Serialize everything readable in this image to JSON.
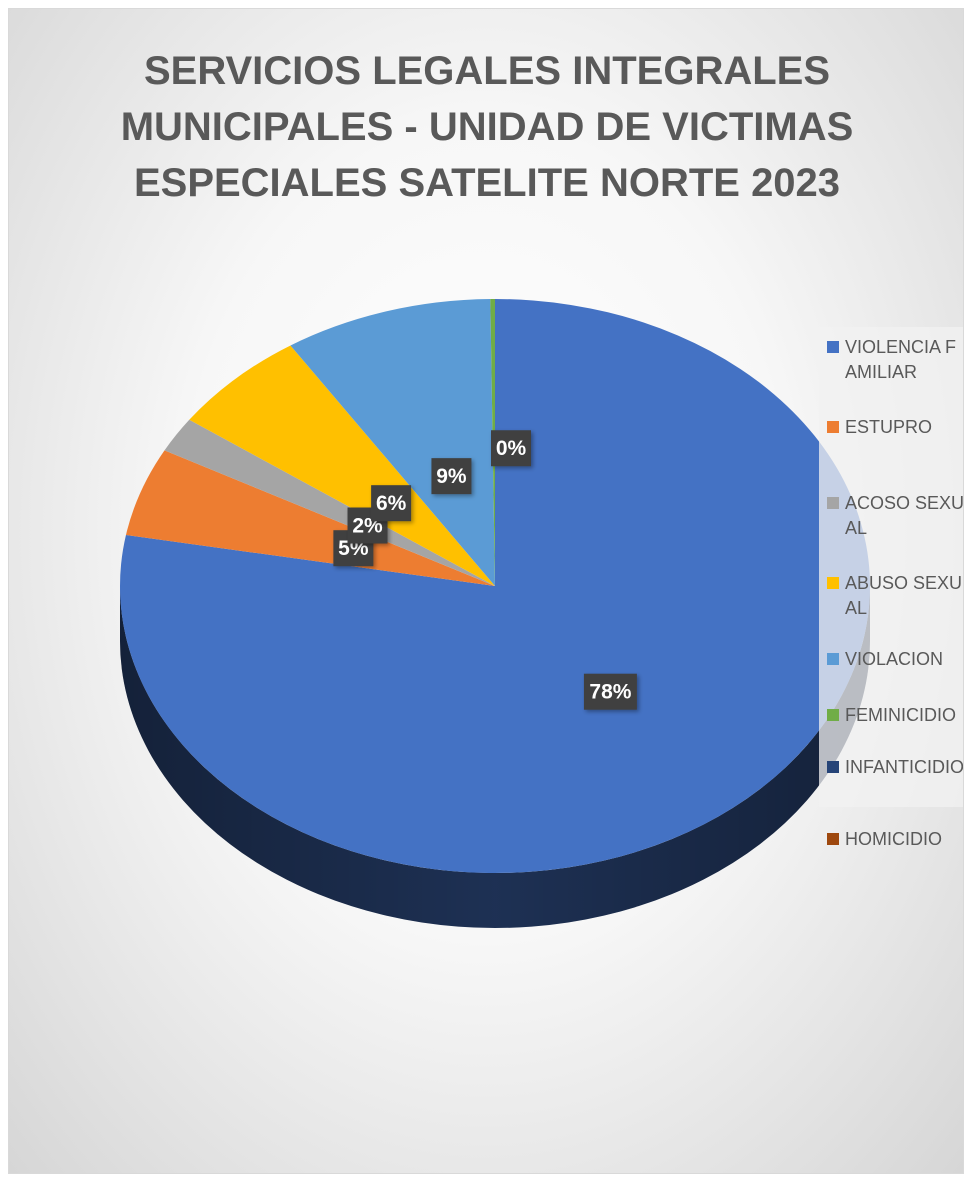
{
  "chart_data": {
    "type": "pie",
    "title_lines": [
      "SERVICIOS LEGALES INTEGRALES",
      "MUNICIPALES -  UNIDAD DE VICTIMAS",
      "ESPECIALES SATELITE NORTE 2023"
    ],
    "legend_position": "right",
    "slices": [
      {
        "name": "VIOLENCIA FAMILIAR",
        "value": 78,
        "label": "78%",
        "color": "#4472C4"
      },
      {
        "name": "ESTUPRO",
        "value": 5,
        "label": "5%",
        "color": "#ED7D31"
      },
      {
        "name": "ACOSO SEXUAL",
        "value": 2,
        "label": "2%",
        "color": "#A5A5A5"
      },
      {
        "name": "ABUSO SEXUAL",
        "value": 6,
        "label": "6%",
        "color": "#FFC000"
      },
      {
        "name": "VIOLACION",
        "value": 9,
        "label": "9%",
        "color": "#5B9BD5"
      },
      {
        "name": "FEMINICIDIO",
        "value": 0.2,
        "label": "0%",
        "color": "#70AD47"
      },
      {
        "name": "INFANTICIDIO",
        "value": 0,
        "label": "",
        "color": "#264478"
      },
      {
        "name": "HOMICIDIO",
        "value": 0,
        "label": "",
        "color": "#9E480E"
      }
    ]
  }
}
